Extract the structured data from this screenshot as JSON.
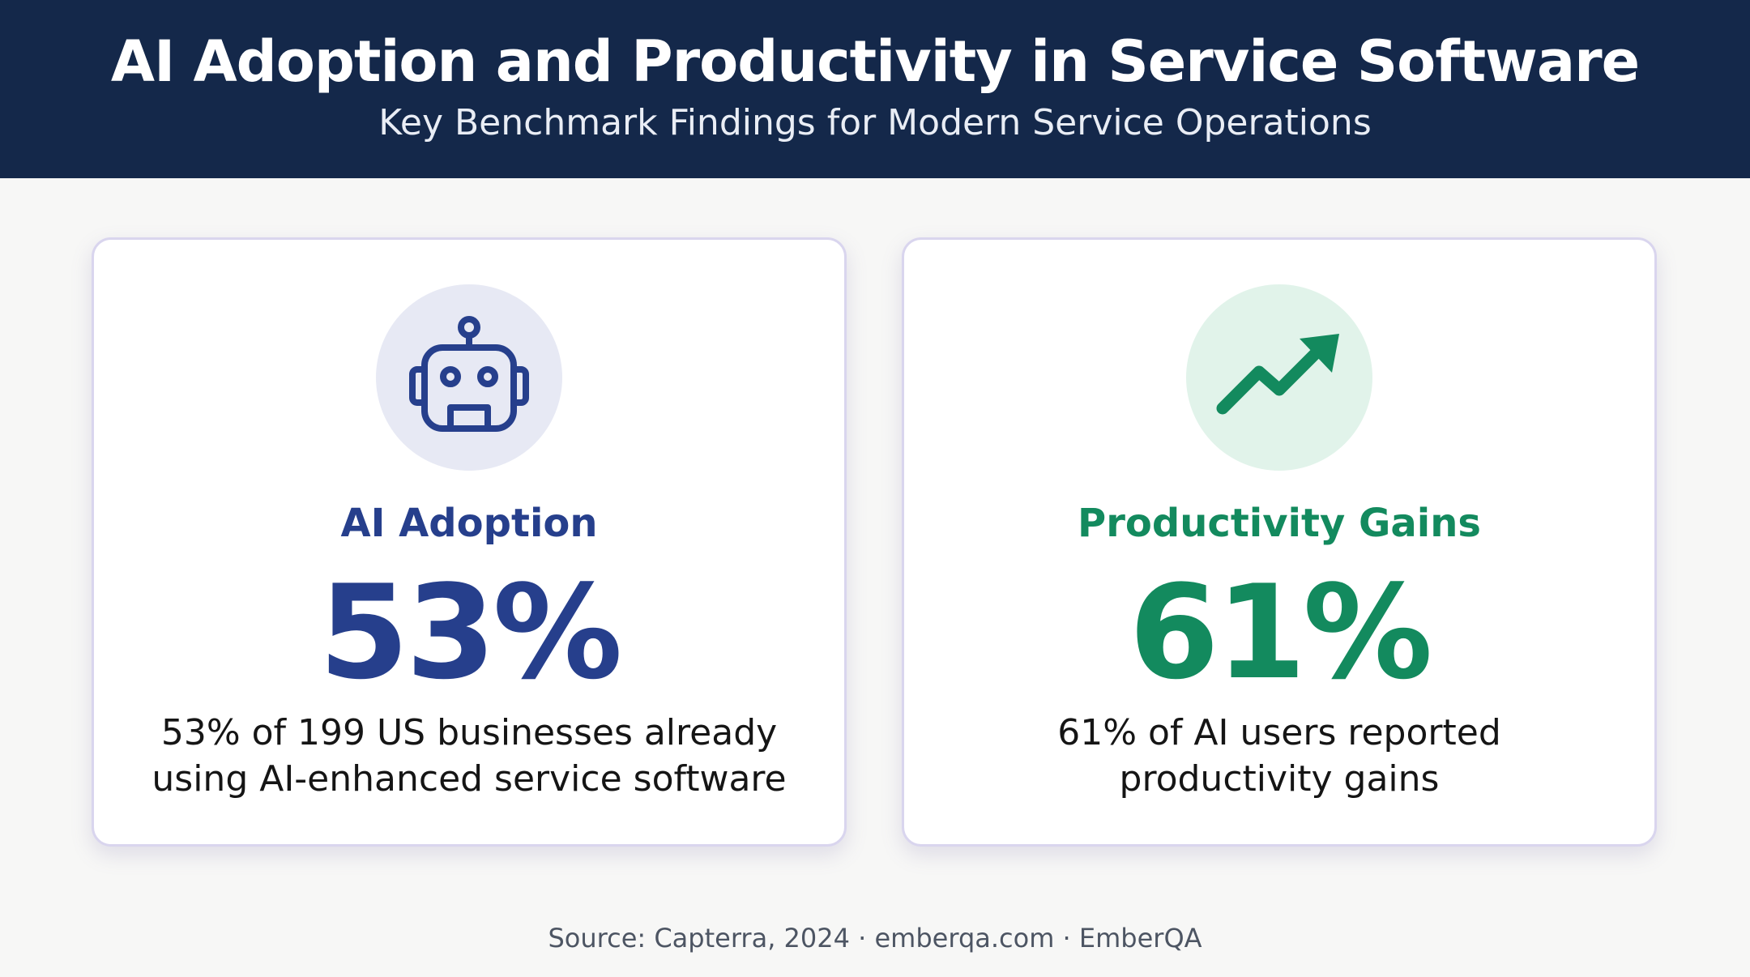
{
  "header": {
    "title": "AI Adoption and Productivity in Service Software",
    "subtitle": "Key Benchmark Findings for Modern Service Operations"
  },
  "cards": [
    {
      "icon": "robot-icon",
      "heading": "AI Adoption",
      "value": "53%",
      "description_lines": [
        "53% of 199 US businesses already",
        "using AI-enhanced service software"
      ],
      "accent_color": "#263f8c",
      "icon_bg_color": "#e7e9f4"
    },
    {
      "icon": "trending-up-arrow-icon",
      "heading": "Productivity Gains",
      "value": "61%",
      "description_lines": [
        "61% of AI users reported",
        "productivity gains"
      ],
      "accent_color": "#138a5e",
      "icon_bg_color": "#e1f3ea"
    }
  ],
  "footer": {
    "source": "Source: Capterra, 2024 · emberqa.com · EmberQA"
  },
  "colors": {
    "header_bg": "#14284a",
    "page_bg": "#f7f7f6",
    "card_border": "#d9d5ee"
  }
}
